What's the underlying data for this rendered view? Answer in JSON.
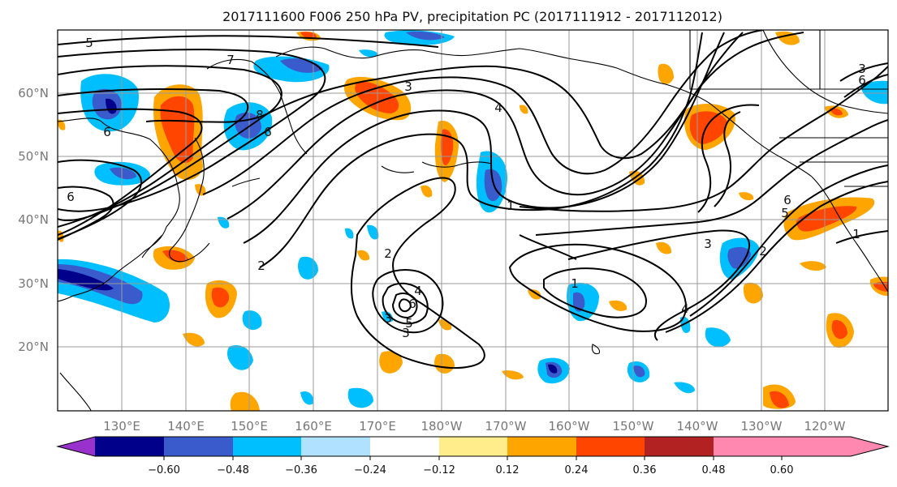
{
  "title": "2017111600 F006 250 hPa PV, precipitation PC (2017111912 - 2017112012)",
  "map": {
    "lat_labels": [
      "60°N",
      "50°N",
      "40°N",
      "30°N",
      "20°N"
    ],
    "lon_labels": [
      "130°E",
      "140°E",
      "150°E",
      "160°E",
      "170°E",
      "180°W",
      "170°W",
      "160°W",
      "150°W",
      "140°W",
      "130°W",
      "120°W"
    ],
    "contour_labels": [
      "5",
      "7",
      "6",
      "6",
      "3",
      "8",
      "6",
      "4",
      "1",
      "2",
      "2",
      "5",
      "6",
      "4",
      "3",
      "3",
      "1",
      "4",
      "3",
      "2",
      "5",
      "6",
      "3",
      "1",
      "6"
    ]
  },
  "colorbar": {
    "tick_labels": [
      "−0.60",
      "−0.48",
      "−0.36",
      "−0.24",
      "−0.12",
      "0.12",
      "0.24",
      "0.36",
      "0.48",
      "0.60"
    ],
    "colors": [
      "#9932cc",
      "#00008b",
      "#3a5bcc",
      "#00bfff",
      "#b0e2ff",
      "#ffffff",
      "#ffec8b",
      "#ffa500",
      "#ff4500",
      "#b22222",
      "#ff88b0"
    ]
  }
}
